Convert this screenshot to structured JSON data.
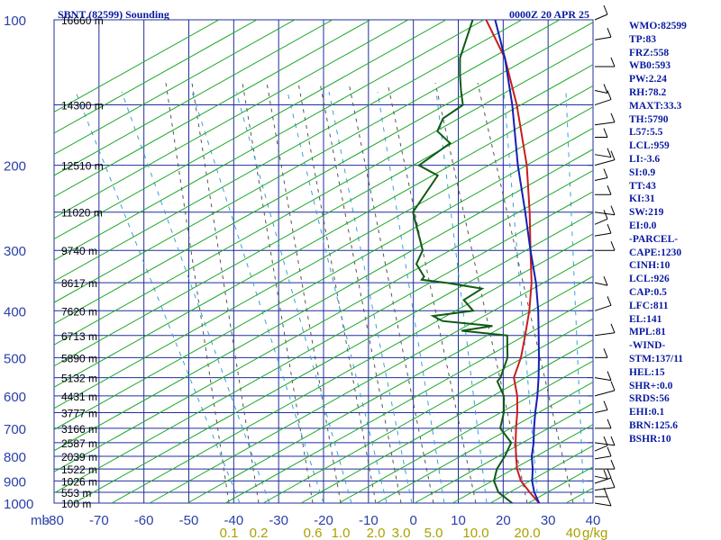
{
  "header": {
    "title": "SBNT (82599) Sounding",
    "time": "0000Z 20 APR 25"
  },
  "pressure_unit": "mb",
  "mixing_ratio_unit": "g/kg",
  "indices": [
    "WMO:82599",
    "TP:83",
    "FRZ:558",
    "WB0:593",
    "PW:2.24",
    "RH:78.2",
    "MAXT:33.3",
    "TH:5790",
    "L57:5.5",
    "LCL:959",
    "LI:-3.6",
    "SI:0.9",
    "TT:43",
    "KI:31",
    "SW:219",
    "EI:0.0",
    "-PARCEL-",
    "CAPE:1230",
    "CINH:10",
    "LCL:926",
    "CAP:0.5",
    "LFC:811",
    "EL:141",
    "MPL:81",
    "-WIND-",
    "STM:137/11",
    "HEL:15",
    "SHR+:0.0",
    "SRDS:56",
    "EHI:0.1",
    "BRN:125.6",
    "BSHR:10"
  ],
  "colors": {
    "grid": "#1f2f9c",
    "dry_adiabat": "#1ea828",
    "mixing_ratio": "#3aa0d8",
    "temperature": "#c81e1e",
    "dewpoint": "#0f5a14",
    "parcel": "#1420b4"
  },
  "chart_data": {
    "type": "line",
    "xlabel": "",
    "ylabel": "mb",
    "xlim": [
      -80,
      40
    ],
    "ylim": [
      1000,
      100
    ],
    "x_ticks": [
      "-80",
      "-70",
      "-60",
      "-50",
      "-40",
      "-30",
      "-20",
      "-10",
      "0",
      "10",
      "20",
      "30",
      "40"
    ],
    "pressure_levels": [
      100,
      200,
      300,
      400,
      500,
      600,
      700,
      800,
      900,
      1000
    ],
    "altitude_labels": [
      {
        "p": 100,
        "text": "16660 m"
      },
      {
        "p": 150,
        "text": "14300 m"
      },
      {
        "p": 200,
        "text": "12510 m"
      },
      {
        "p": 250,
        "text": "11020 m"
      },
      {
        "p": 300,
        "text": "9740 m"
      },
      {
        "p": 350,
        "text": "8617 m"
      },
      {
        "p": 400,
        "text": "7620 m"
      },
      {
        "p": 450,
        "text": "6713 m"
      },
      {
        "p": 500,
        "text": "5890 m"
      },
      {
        "p": 550,
        "text": "5132 m"
      },
      {
        "p": 600,
        "text": "4431 m"
      },
      {
        "p": 650,
        "text": "3777 m"
      },
      {
        "p": 700,
        "text": "3166 m"
      },
      {
        "p": 750,
        "text": "2587 m"
      },
      {
        "p": 800,
        "text": "2039 m"
      },
      {
        "p": 850,
        "text": "1522 m"
      },
      {
        "p": 900,
        "text": "1026 m"
      },
      {
        "p": 950,
        "text": "553 m"
      },
      {
        "p": 1000,
        "text": "100 m"
      }
    ],
    "mixing_ratio_labels": [
      "0.1",
      "0.2",
      "0.6",
      "1.0",
      "2.0",
      "3.0",
      "5.0",
      "10.0",
      "20.0",
      "40"
    ],
    "series": [
      {
        "key": "temperature",
        "points": [
          [
            1008,
            29.5
          ],
          [
            1000,
            28
          ],
          [
            950,
            24
          ],
          [
            900,
            20
          ],
          [
            850,
            17
          ],
          [
            800,
            14.5
          ],
          [
            750,
            12
          ],
          [
            700,
            9.5
          ],
          [
            650,
            7
          ],
          [
            600,
            4
          ],
          [
            550,
            0
          ],
          [
            500,
            -2
          ],
          [
            450,
            -5
          ],
          [
            400,
            -8.5
          ],
          [
            350,
            -13
          ],
          [
            300,
            -19
          ],
          [
            250,
            -26
          ],
          [
            200,
            -35
          ],
          [
            150,
            -48
          ],
          [
            120,
            -59
          ],
          [
            100,
            -70
          ]
        ]
      },
      {
        "key": "dewpoint",
        "points": [
          [
            1008,
            22.5
          ],
          [
            1000,
            22
          ],
          [
            950,
            17
          ],
          [
            900,
            14
          ],
          [
            850,
            12.5
          ],
          [
            800,
            12
          ],
          [
            750,
            11
          ],
          [
            700,
            6
          ],
          [
            650,
            4
          ],
          [
            600,
            1
          ],
          [
            560,
            -3
          ],
          [
            550,
            -3
          ],
          [
            500,
            -5
          ],
          [
            450,
            -9
          ],
          [
            440,
            -20
          ],
          [
            430,
            -14
          ],
          [
            420,
            -26
          ],
          [
            410,
            -29
          ],
          [
            400,
            -21
          ],
          [
            380,
            -25
          ],
          [
            360,
            -23
          ],
          [
            350,
            -32
          ],
          [
            345,
            -38
          ],
          [
            340,
            -38
          ],
          [
            335,
            -39
          ],
          [
            320,
            -42
          ],
          [
            300,
            -43
          ],
          [
            250,
            -52
          ],
          [
            210,
            -53
          ],
          [
            200,
            -59
          ],
          [
            180,
            -56
          ],
          [
            170,
            -61
          ],
          [
            160,
            -62
          ],
          [
            150,
            -60
          ],
          [
            140,
            -63
          ],
          [
            130,
            -66
          ],
          [
            120,
            -69
          ],
          [
            100,
            -73
          ]
        ]
      },
      {
        "key": "parcel",
        "points": [
          [
            1008,
            29
          ],
          [
            1000,
            28
          ],
          [
            950,
            25
          ],
          [
            900,
            22.5
          ],
          [
            850,
            20.5
          ],
          [
            800,
            18
          ],
          [
            750,
            16
          ],
          [
            700,
            13.5
          ],
          [
            650,
            11
          ],
          [
            600,
            8.5
          ],
          [
            550,
            5.5
          ],
          [
            500,
            2
          ],
          [
            450,
            -2
          ],
          [
            400,
            -6.5
          ],
          [
            350,
            -12
          ],
          [
            300,
            -19
          ],
          [
            250,
            -27
          ],
          [
            200,
            -37
          ],
          [
            150,
            -49
          ],
          [
            120,
            -59
          ],
          [
            100,
            -68
          ]
        ]
      }
    ]
  }
}
